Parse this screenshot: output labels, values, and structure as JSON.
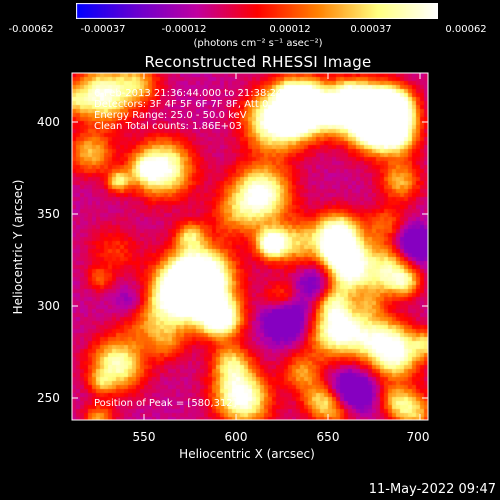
{
  "colorbar": {
    "ticks": [
      "-0.00062",
      "-0.00037",
      "-0.00012",
      "0.00012",
      "0.00037",
      "0.00062"
    ],
    "unit": "(photons cm⁻² s⁻¹ asec⁻²)",
    "colors": [
      "#0000ff",
      "#6a00d0",
      "#c000a0",
      "#ff0000",
      "#ff8000",
      "#ffff80",
      "#ffffff"
    ]
  },
  "info": {
    "time_range": "6-Feb-2013 21:36:44.000 to 21:38:24.000",
    "detectors": "Detectors: 3F 4F 5F 6F 7F 8F, Att 0",
    "energy": "Energy Range: 25.0 - 50.0 keV",
    "clean": "Clean     Total counts: 1.86E+03",
    "peak": "Position of Peak = [580,312]"
  },
  "timestamp": "11-May-2022 09:47",
  "chart_data": {
    "type": "heatmap",
    "title": "Reconstructed RHESSI Image",
    "xlabel": "Heliocentric X (arcsec)",
    "ylabel": "Heliocentric Y (arcsec)",
    "xlim": [
      512,
      700
    ],
    "ylim": [
      235,
      424
    ],
    "xticks": [
      "550",
      "600",
      "650",
      "700"
    ],
    "yticks": [
      "250",
      "300",
      "350",
      "400"
    ],
    "colorbar_range": [
      -0.00062,
      0.00062
    ],
    "peak_position": [
      580,
      312
    ],
    "hot_spots": [
      {
        "x": 580,
        "y": 312,
        "level": 1.0
      },
      {
        "x": 572,
        "y": 304,
        "level": 0.9
      },
      {
        "x": 620,
        "y": 398,
        "level": 0.85
      },
      {
        "x": 612,
        "y": 358,
        "level": 0.7
      },
      {
        "x": 560,
        "y": 372,
        "level": 0.7
      },
      {
        "x": 528,
        "y": 412,
        "level": 0.6
      },
      {
        "x": 672,
        "y": 396,
        "level": 0.6
      },
      {
        "x": 640,
        "y": 405,
        "level": 0.55
      },
      {
        "x": 536,
        "y": 265,
        "level": 0.5
      },
      {
        "x": 600,
        "y": 250,
        "level": 0.45
      },
      {
        "x": 660,
        "y": 320,
        "level": 0.45
      },
      {
        "x": 683,
        "y": 270,
        "level": 0.4
      },
      {
        "x": 650,
        "y": 282,
        "level": 0.4
      }
    ],
    "cold_spots": [
      {
        "x": 545,
        "y": 298
      },
      {
        "x": 640,
        "y": 312
      },
      {
        "x": 690,
        "y": 330
      },
      {
        "x": 625,
        "y": 290
      },
      {
        "x": 660,
        "y": 250
      }
    ]
  }
}
